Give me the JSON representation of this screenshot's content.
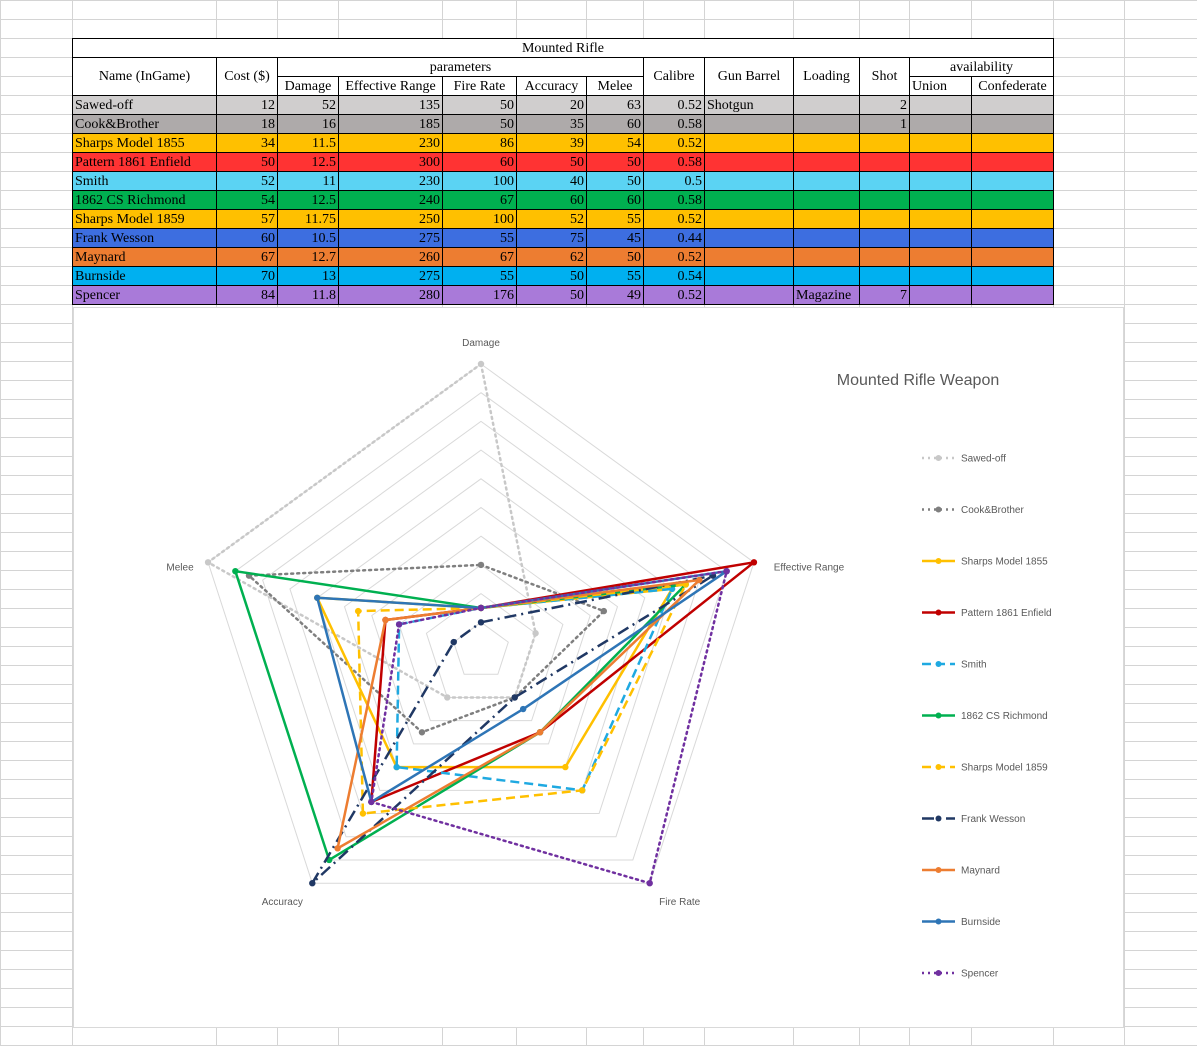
{
  "table": {
    "title": "Mounted Rifle",
    "headers": {
      "name": "Name (InGame)",
      "cost": "Cost ($)",
      "parameters": "parameters",
      "damage": "Damage",
      "effective_range": "Effective Range",
      "fire_rate": "Fire Rate",
      "accuracy": "Accuracy",
      "melee": "Melee",
      "calibre": "Calibre",
      "gun_barrel": "Gun Barrel",
      "loading": "Loading",
      "shot": "Shot",
      "availability": "availability",
      "union": "Union",
      "confederate": "Confederate"
    },
    "rows": [
      {
        "name": "Sawed-off",
        "cost": "12",
        "damage": "52",
        "range": "135",
        "fire_rate": "50",
        "accuracy": "20",
        "melee": "63",
        "calibre": "0.52",
        "barrel": "Shotgun",
        "loading": "",
        "shot": "2",
        "union": "",
        "confederate": "",
        "color": "#d0cece"
      },
      {
        "name": "Cook&Brother",
        "cost": "18",
        "damage": "16",
        "range": "185",
        "fire_rate": "50",
        "accuracy": "35",
        "melee": "60",
        "calibre": "0.58",
        "barrel": "",
        "loading": "",
        "shot": "1",
        "union": "",
        "confederate": "",
        "color": "#aeaaaa"
      },
      {
        "name": "Sharps Model 1855",
        "cost": "34",
        "damage": "11.5",
        "range": "230",
        "fire_rate": "86",
        "accuracy": "39",
        "melee": "54",
        "calibre": "0.52",
        "barrel": "",
        "loading": "",
        "shot": "",
        "union": "",
        "confederate": "",
        "color": "#ffc000"
      },
      {
        "name": "Pattern 1861 Enfield",
        "cost": "50",
        "damage": "12.5",
        "range": "300",
        "fire_rate": "60",
        "accuracy": "50",
        "melee": "50",
        "calibre": "0.58",
        "barrel": "",
        "loading": "",
        "shot": "",
        "union": "",
        "confederate": "",
        "color": "#ff3333"
      },
      {
        "name": "Smith",
        "cost": "52",
        "damage": "11",
        "range": "230",
        "fire_rate": "100",
        "accuracy": "40",
        "melee": "50",
        "calibre": "0.5",
        "barrel": "",
        "loading": "",
        "shot": "",
        "union": "",
        "confederate": "",
        "color": "#5bd3f3"
      },
      {
        "name": "1862 CS Richmond",
        "cost": "54",
        "damage": "12.5",
        "range": "240",
        "fire_rate": "67",
        "accuracy": "60",
        "melee": "60",
        "calibre": "0.58",
        "barrel": "",
        "loading": "",
        "shot": "",
        "union": "",
        "confederate": "",
        "color": "#00b050"
      },
      {
        "name": "Sharps Model 1859",
        "cost": "57",
        "damage": "11.75",
        "range": "250",
        "fire_rate": "100",
        "accuracy": "52",
        "melee": "55",
        "calibre": "0.52",
        "barrel": "",
        "loading": "",
        "shot": "",
        "union": "",
        "confederate": "",
        "color": "#ffc000"
      },
      {
        "name": "Frank Wesson",
        "cost": "60",
        "damage": "10.5",
        "range": "275",
        "fire_rate": "55",
        "accuracy": "75",
        "melee": "45",
        "calibre": "0.44",
        "barrel": "",
        "loading": "",
        "shot": "",
        "union": "",
        "confederate": "",
        "color": "#3d6ee0"
      },
      {
        "name": "Maynard",
        "cost": "67",
        "damage": "12.7",
        "range": "260",
        "fire_rate": "67",
        "accuracy": "62",
        "melee": "50",
        "calibre": "0.52",
        "barrel": "",
        "loading": "",
        "shot": "",
        "union": "",
        "confederate": "",
        "color": "#ed7d31"
      },
      {
        "name": "Burnside",
        "cost": "70",
        "damage": "13",
        "range": "275",
        "fire_rate": "55",
        "accuracy": "50",
        "melee": "55",
        "calibre": "0.54",
        "barrel": "",
        "loading": "",
        "shot": "",
        "union": "",
        "confederate": "",
        "color": "#00b0f0"
      },
      {
        "name": "Spencer",
        "cost": "84",
        "damage": "11.8",
        "range": "280",
        "fire_rate": "176",
        "accuracy": "50",
        "melee": "49",
        "calibre": "0.52",
        "barrel": "",
        "loading": "Magazine",
        "shot": "7",
        "union": "",
        "confederate": "",
        "color": "#a97ad9"
      }
    ]
  },
  "chart_data": {
    "type": "radar",
    "title": "Mounted Rifle Weapon",
    "axes": [
      "Damage",
      "Effective Range",
      "Fire Rate",
      "Accuracy",
      "Melee"
    ],
    "legend_position": "right",
    "series": [
      {
        "name": "Sawed-off",
        "values": [
          1.0,
          0.2,
          0.2,
          0.2,
          1.0
        ],
        "color": "#c8c8c8",
        "dash": "dot",
        "width": 2.5
      },
      {
        "name": "Cook&Brother",
        "values": [
          0.3,
          0.45,
          0.2,
          0.35,
          0.85
        ],
        "color": "#7f7f7f",
        "dash": "dot",
        "width": 2.5
      },
      {
        "name": "Sharps Model 1855",
        "values": [
          0.15,
          0.7,
          0.5,
          0.5,
          0.6
        ],
        "color": "#ffc000",
        "dash": "solid",
        "width": 2.5
      },
      {
        "name": "Pattern 1861 Enfield",
        "values": [
          0.15,
          1.0,
          0.35,
          0.65,
          0.35
        ],
        "color": "#c00000",
        "dash": "solid",
        "width": 2.5
      },
      {
        "name": "Smith",
        "values": [
          0.15,
          0.7,
          0.6,
          0.5,
          0.3
        ],
        "color": "#1fa9e1",
        "dash": "dash",
        "width": 2.5
      },
      {
        "name": "1862 CS Richmond",
        "values": [
          0.15,
          0.75,
          0.35,
          0.9,
          0.9
        ],
        "color": "#00b050",
        "dash": "solid",
        "width": 2.5
      },
      {
        "name": "Sharps Model 1859",
        "values": [
          0.15,
          0.75,
          0.6,
          0.7,
          0.45
        ],
        "color": "#ffc000",
        "dash": "dash",
        "width": 2.5
      },
      {
        "name": "Frank Wesson",
        "values": [
          0.1,
          0.85,
          0.2,
          1.0,
          0.1
        ],
        "color": "#203864",
        "dash": "dashdot",
        "width": 2.5
      },
      {
        "name": "Maynard",
        "values": [
          0.15,
          0.8,
          0.35,
          0.85,
          0.35
        ],
        "color": "#ed7d31",
        "dash": "solid",
        "width": 2.5
      },
      {
        "name": "Burnside",
        "values": [
          0.15,
          0.9,
          0.25,
          0.65,
          0.6
        ],
        "color": "#2e75b6",
        "dash": "solid",
        "width": 2.5
      },
      {
        "name": "Spencer",
        "values": [
          0.15,
          0.9,
          1.0,
          0.65,
          0.3
        ],
        "color": "#7030a0",
        "dash": "dot",
        "width": 2.5
      }
    ]
  }
}
